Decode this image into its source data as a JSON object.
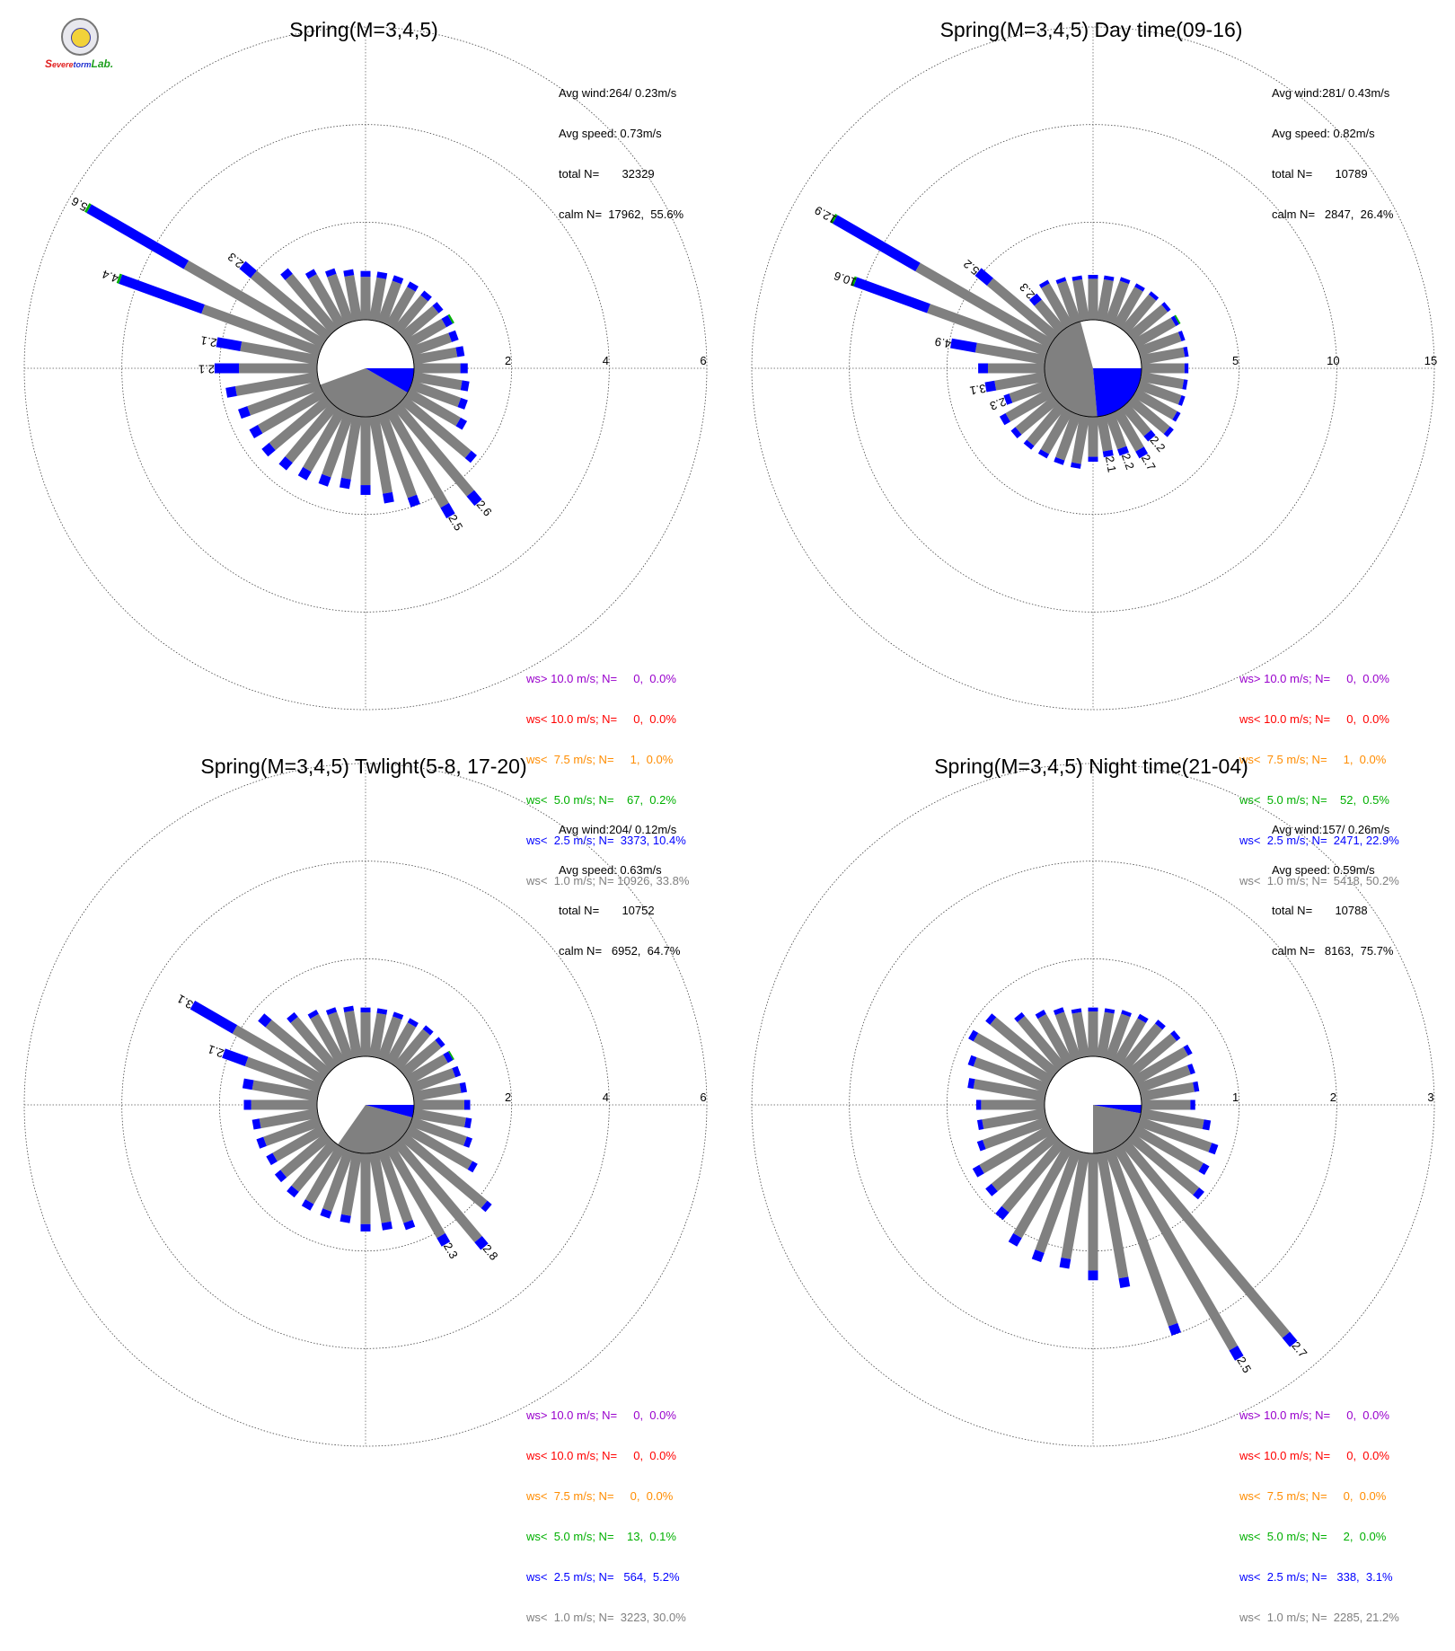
{
  "logo": {
    "text_s": "S",
    "text_evere": "evere",
    "text_torm": "torm",
    "text_lab": "Lab."
  },
  "legend_colors": [
    "#9900cc",
    "#ff0000",
    "#ff8c00",
    "#00b000",
    "#0000ff",
    "#808080"
  ],
  "chart_data": [
    {
      "type": "windrose",
      "title": "Spring(M=3,4,5)",
      "rmax": 6,
      "rings": [
        2,
        4,
        6
      ],
      "ring_labels": [
        "2",
        "4",
        "6"
      ],
      "stats": [
        "Avg wind:264/ 0.23m/s",
        "Avg speed: 0.73m/s",
        "total N=       32329",
        "calm N=  17962,  55.6%"
      ],
      "legend": [
        "ws> 10.0 m/s; N=     0,  0.0%",
        "ws< 10.0 m/s; N=     0,  0.0%",
        "ws<  7.5 m/s; N=     1,  0.0%",
        "ws<  5.0 m/s; N=    67,  0.2%",
        "ws<  2.5 m/s; N=  3373, 10.4%",
        "ws<  1.0 m/s; N= 10926, 33.8%"
      ],
      "calm_sector": {
        "gray_from": 120,
        "gray_to": 250,
        "blue_from": 90,
        "blue_to": 120
      },
      "bars": [
        {
          "dir": 0,
          "total": 1.0,
          "blue": 0.12
        },
        {
          "dir": 10,
          "total": 1.0,
          "blue": 0.12
        },
        {
          "dir": 20,
          "total": 1.0,
          "blue": 0.12
        },
        {
          "dir": 30,
          "total": 1.0,
          "blue": 0.12
        },
        {
          "dir": 40,
          "total": 1.0,
          "blue": 0.12
        },
        {
          "dir": 50,
          "total": 1.0,
          "blue": 0.12
        },
        {
          "dir": 60,
          "total": 1.05,
          "blue": 0.15,
          "green": 0.04
        },
        {
          "dir": 70,
          "total": 1.0,
          "blue": 0.15
        },
        {
          "dir": 80,
          "total": 1.05,
          "blue": 0.15
        },
        {
          "dir": 90,
          "total": 1.1,
          "blue": 0.15
        },
        {
          "dir": 100,
          "total": 1.15,
          "blue": 0.15
        },
        {
          "dir": 110,
          "total": 1.2,
          "blue": 0.15
        },
        {
          "dir": 120,
          "total": 1.35,
          "blue": 0.15
        },
        {
          "dir": 130,
          "total": 1.9,
          "blue": 0.15
        },
        {
          "dir": 140,
          "total": 2.6,
          "blue": 0.25,
          "label": "2.6"
        },
        {
          "dir": 150,
          "total": 2.5,
          "blue": 0.25,
          "label": "2.5"
        },
        {
          "dir": 160,
          "total": 2.0,
          "blue": 0.2
        },
        {
          "dir": 170,
          "total": 1.8,
          "blue": 0.2
        },
        {
          "dir": 180,
          "total": 1.6,
          "blue": 0.2
        },
        {
          "dir": 190,
          "total": 1.5,
          "blue": 0.2
        },
        {
          "dir": 200,
          "total": 1.55,
          "blue": 0.2
        },
        {
          "dir": 210,
          "total": 1.6,
          "blue": 0.2
        },
        {
          "dir": 220,
          "total": 1.65,
          "blue": 0.2
        },
        {
          "dir": 230,
          "total": 1.7,
          "blue": 0.2
        },
        {
          "dir": 240,
          "total": 1.7,
          "blue": 0.2
        },
        {
          "dir": 250,
          "total": 1.75,
          "blue": 0.2
        },
        {
          "dir": 260,
          "total": 1.9,
          "blue": 0.2
        },
        {
          "dir": 270,
          "total": 2.1,
          "blue": 0.5,
          "label": "2.1"
        },
        {
          "dir": 280,
          "total": 2.1,
          "blue": 0.5,
          "label": "2.1"
        },
        {
          "dir": 290,
          "total": 4.4,
          "blue": 1.8,
          "green": 0.05,
          "label": "4.4"
        },
        {
          "dir": 300,
          "total": 5.6,
          "blue": 2.3,
          "green": 0.05,
          "label": "5.6"
        },
        {
          "dir": 310,
          "total": 2.3,
          "blue": 0.3,
          "label": "2.3"
        },
        {
          "dir": 320,
          "total": 1.6,
          "blue": 0.15
        },
        {
          "dir": 330,
          "total": 1.3,
          "blue": 0.12
        },
        {
          "dir": 340,
          "total": 1.15,
          "blue": 0.12
        },
        {
          "dir": 350,
          "total": 1.05,
          "blue": 0.12
        }
      ]
    },
    {
      "type": "windrose",
      "title": "Spring(M=3,4,5) Day time(09-16)",
      "rmax": 15,
      "rings": [
        5,
        10,
        15
      ],
      "ring_labels": [
        "5",
        "10",
        "15"
      ],
      "stats": [
        "Avg wind:281/ 0.43m/s",
        "Avg speed: 0.82m/s",
        "total N=       10789",
        "calm N=   2847,  26.4%"
      ],
      "legend": [
        "ws> 10.0 m/s; N=     0,  0.0%",
        "ws< 10.0 m/s; N=     0,  0.0%",
        "ws<  7.5 m/s; N=     1,  0.0%",
        "ws<  5.0 m/s; N=    52,  0.5%",
        "ws<  2.5 m/s; N=  2471, 22.9%",
        "ws<  1.0 m/s; N=  5418, 50.2%"
      ],
      "calm_sector": {
        "gray_from": 175,
        "gray_to": 345,
        "blue_from": 90,
        "blue_to": 175
      },
      "bars": [
        {
          "dir": 0,
          "total": 2.3,
          "blue": 0.2
        },
        {
          "dir": 10,
          "total": 2.3,
          "blue": 0.2
        },
        {
          "dir": 20,
          "total": 2.4,
          "blue": 0.2
        },
        {
          "dir": 30,
          "total": 2.4,
          "blue": 0.2
        },
        {
          "dir": 40,
          "total": 2.45,
          "blue": 0.2
        },
        {
          "dir": 50,
          "total": 2.5,
          "blue": 0.2
        },
        {
          "dir": 60,
          "total": 2.55,
          "blue": 0.2,
          "green": 0.08
        },
        {
          "dir": 70,
          "total": 2.45,
          "blue": 0.2
        },
        {
          "dir": 80,
          "total": 2.45,
          "blue": 0.2
        },
        {
          "dir": 90,
          "total": 2.4,
          "blue": 0.2
        },
        {
          "dir": 100,
          "total": 2.4,
          "blue": 0.2
        },
        {
          "dir": 110,
          "total": 2.45,
          "blue": 0.2
        },
        {
          "dir": 120,
          "total": 2.55,
          "blue": 0.2
        },
        {
          "dir": 130,
          "total": 2.7,
          "blue": 0.25
        },
        {
          "dir": 140,
          "total": 2.2,
          "blue": 0.35,
          "label": "2.2"
        },
        {
          "dir": 150,
          "total": 2.7,
          "blue": 0.4,
          "label": "2.7"
        },
        {
          "dir": 160,
          "total": 2.2,
          "blue": 0.35,
          "label": "2.2"
        },
        {
          "dir": 170,
          "total": 2.1,
          "blue": 0.3,
          "label": "2.1"
        },
        {
          "dir": 180,
          "total": 2.3,
          "blue": 0.25
        },
        {
          "dir": 190,
          "total": 2.7,
          "blue": 0.25
        },
        {
          "dir": 200,
          "total": 2.7,
          "blue": 0.25
        },
        {
          "dir": 210,
          "total": 2.7,
          "blue": 0.25
        },
        {
          "dir": 220,
          "total": 2.75,
          "blue": 0.25
        },
        {
          "dir": 230,
          "total": 2.8,
          "blue": 0.3
        },
        {
          "dir": 240,
          "total": 2.9,
          "blue": 0.35
        },
        {
          "dir": 250,
          "total": 2.3,
          "blue": 0.3,
          "label": "2.3"
        },
        {
          "dir": 260,
          "total": 3.1,
          "blue": 0.5,
          "label": "3.1"
        },
        {
          "dir": 270,
          "total": 3.4,
          "blue": 0.5
        },
        {
          "dir": 280,
          "total": 4.9,
          "blue": 1.3,
          "label": "4.9"
        },
        {
          "dir": 290,
          "total": 10.6,
          "blue": 4.0,
          "green": 0.12,
          "label": "10.6"
        },
        {
          "dir": 300,
          "total": 12.9,
          "blue": 4.9,
          "green": 0.12,
          "label": "12.9"
        },
        {
          "dir": 310,
          "total": 5.2,
          "blue": 0.8,
          "label": "5.2"
        },
        {
          "dir": 320,
          "total": 2.3,
          "blue": 0.4,
          "label": "2.3"
        },
        {
          "dir": 330,
          "total": 2.6,
          "blue": 0.2
        },
        {
          "dir": 340,
          "total": 2.4,
          "blue": 0.2
        },
        {
          "dir": 350,
          "total": 2.3,
          "blue": 0.2
        }
      ]
    },
    {
      "type": "windrose",
      "title": "Spring(M=3,4,5) Twlight(5-8, 17-20)",
      "rmax": 6,
      "rings": [
        2,
        4,
        6
      ],
      "ring_labels": [
        "2",
        "4",
        "6"
      ],
      "stats": [
        "Avg wind:204/ 0.12m/s",
        "Avg speed: 0.63m/s",
        "total N=       10752",
        "calm N=   6952,  64.7%"
      ],
      "legend": [
        "ws> 10.0 m/s; N=     0,  0.0%",
        "ws< 10.0 m/s; N=     0,  0.0%",
        "ws<  7.5 m/s; N=     0,  0.0%",
        "ws<  5.0 m/s; N=    13,  0.1%",
        "ws<  2.5 m/s; N=   564,  5.2%",
        "ws<  1.0 m/s; N=  3223, 30.0%"
      ],
      "calm_sector": {
        "gray_from": 105,
        "gray_to": 215,
        "blue_from": 90,
        "blue_to": 105
      },
      "bars": [
        {
          "dir": 0,
          "total": 1.0,
          "blue": 0.1
        },
        {
          "dir": 10,
          "total": 1.0,
          "blue": 0.1
        },
        {
          "dir": 20,
          "total": 1.0,
          "blue": 0.1
        },
        {
          "dir": 30,
          "total": 1.0,
          "blue": 0.1
        },
        {
          "dir": 40,
          "total": 1.05,
          "blue": 0.1
        },
        {
          "dir": 50,
          "total": 1.05,
          "blue": 0.1
        },
        {
          "dir": 60,
          "total": 1.05,
          "blue": 0.12,
          "green": 0.03
        },
        {
          "dir": 70,
          "total": 1.05,
          "blue": 0.12
        },
        {
          "dir": 80,
          "total": 1.1,
          "blue": 0.12
        },
        {
          "dir": 90,
          "total": 1.15,
          "blue": 0.12
        },
        {
          "dir": 100,
          "total": 1.2,
          "blue": 0.12
        },
        {
          "dir": 110,
          "total": 1.3,
          "blue": 0.12
        },
        {
          "dir": 120,
          "total": 1.6,
          "blue": 0.12
        },
        {
          "dir": 130,
          "total": 2.3,
          "blue": 0.12
        },
        {
          "dir": 140,
          "total": 2.8,
          "blue": 0.2,
          "label": "2.8"
        },
        {
          "dir": 150,
          "total": 2.3,
          "blue": 0.2,
          "label": "2.3"
        },
        {
          "dir": 160,
          "total": 1.7,
          "blue": 0.15
        },
        {
          "dir": 170,
          "total": 1.6,
          "blue": 0.15
        },
        {
          "dir": 180,
          "total": 1.6,
          "blue": 0.15
        },
        {
          "dir": 190,
          "total": 1.45,
          "blue": 0.15
        },
        {
          "dir": 200,
          "total": 1.45,
          "blue": 0.15
        },
        {
          "dir": 210,
          "total": 1.45,
          "blue": 0.15
        },
        {
          "dir": 220,
          "total": 1.4,
          "blue": 0.15
        },
        {
          "dir": 230,
          "total": 1.35,
          "blue": 0.15
        },
        {
          "dir": 240,
          "total": 1.3,
          "blue": 0.15
        },
        {
          "dir": 250,
          "total": 1.35,
          "blue": 0.15
        },
        {
          "dir": 260,
          "total": 1.35,
          "blue": 0.15
        },
        {
          "dir": 270,
          "total": 1.5,
          "blue": 0.15
        },
        {
          "dir": 280,
          "total": 1.55,
          "blue": 0.2
        },
        {
          "dir": 290,
          "total": 2.1,
          "blue": 0.5,
          "label": "2.1"
        },
        {
          "dir": 300,
          "total": 3.1,
          "blue": 1.0,
          "label": "3.1"
        },
        {
          "dir": 310,
          "total": 1.8,
          "blue": 0.2
        },
        {
          "dir": 320,
          "total": 1.4,
          "blue": 0.12
        },
        {
          "dir": 330,
          "total": 1.2,
          "blue": 0.1
        },
        {
          "dir": 340,
          "total": 1.1,
          "blue": 0.1
        },
        {
          "dir": 350,
          "total": 1.05,
          "blue": 0.1
        }
      ]
    },
    {
      "type": "windrose",
      "title": "Spring(M=3,4,5) Night time(21-04)",
      "rmax": 3,
      "rings": [
        1,
        2,
        3
      ],
      "ring_labels": [
        "1",
        "2",
        "3"
      ],
      "stats": [
        "Avg wind:157/ 0.26m/s",
        "Avg speed: 0.59m/s",
        "total N=       10788",
        "calm N=   8163,  75.7%"
      ],
      "legend": [
        "ws> 10.0 m/s; N=     0,  0.0%",
        "ws< 10.0 m/s; N=     0,  0.0%",
        "ws<  7.5 m/s; N=     0,  0.0%",
        "ws<  5.0 m/s; N=     2,  0.0%",
        "ws<  2.5 m/s; N=   338,  3.1%",
        "ws<  1.0 m/s; N=  2285, 21.2%"
      ],
      "calm_sector": {
        "gray_from": 100,
        "gray_to": 180,
        "blue_from": 90,
        "blue_to": 100
      },
      "bars": [
        {
          "dir": 0,
          "total": 0.5,
          "blue": 0.04
        },
        {
          "dir": 10,
          "total": 0.5,
          "blue": 0.04
        },
        {
          "dir": 20,
          "total": 0.52,
          "blue": 0.04
        },
        {
          "dir": 30,
          "total": 0.55,
          "blue": 0.05
        },
        {
          "dir": 40,
          "total": 0.6,
          "blue": 0.05
        },
        {
          "dir": 50,
          "total": 0.63,
          "blue": 0.05
        },
        {
          "dir": 60,
          "total": 0.65,
          "blue": 0.05
        },
        {
          "dir": 70,
          "total": 0.6,
          "blue": 0.05
        },
        {
          "dir": 80,
          "total": 0.6,
          "blue": 0.05
        },
        {
          "dir": 90,
          "total": 0.55,
          "blue": 0.05
        },
        {
          "dir": 100,
          "total": 0.72,
          "blue": 0.07
        },
        {
          "dir": 110,
          "total": 0.85,
          "blue": 0.07
        },
        {
          "dir": 120,
          "total": 0.85,
          "blue": 0.07
        },
        {
          "dir": 130,
          "total": 0.95,
          "blue": 0.07
        },
        {
          "dir": 140,
          "total": 2.7,
          "blue": 0.12,
          "label": "2.7"
        },
        {
          "dir": 150,
          "total": 2.5,
          "blue": 0.12,
          "label": "2.5"
        },
        {
          "dir": 160,
          "total": 2.0,
          "blue": 0.1
        },
        {
          "dir": 170,
          "total": 1.4,
          "blue": 0.1
        },
        {
          "dir": 180,
          "total": 1.3,
          "blue": 0.1
        },
        {
          "dir": 190,
          "total": 1.2,
          "blue": 0.1
        },
        {
          "dir": 200,
          "total": 1.2,
          "blue": 0.1
        },
        {
          "dir": 210,
          "total": 1.15,
          "blue": 0.1
        },
        {
          "dir": 220,
          "total": 1.0,
          "blue": 0.1
        },
        {
          "dir": 230,
          "total": 0.9,
          "blue": 0.08
        },
        {
          "dir": 240,
          "total": 0.9,
          "blue": 0.08
        },
        {
          "dir": 250,
          "total": 0.75,
          "blue": 0.06
        },
        {
          "dir": 260,
          "total": 0.7,
          "blue": 0.05
        },
        {
          "dir": 270,
          "total": 0.7,
          "blue": 0.05
        },
        {
          "dir": 280,
          "total": 0.8,
          "blue": 0.06
        },
        {
          "dir": 290,
          "total": 0.85,
          "blue": 0.06
        },
        {
          "dir": 300,
          "total": 0.95,
          "blue": 0.06
        },
        {
          "dir": 310,
          "total": 0.9,
          "blue": 0.06
        },
        {
          "dir": 320,
          "total": 0.7,
          "blue": 0.05
        },
        {
          "dir": 330,
          "total": 0.6,
          "blue": 0.05
        },
        {
          "dir": 340,
          "total": 0.55,
          "blue": 0.05
        },
        {
          "dir": 350,
          "total": 0.5,
          "blue": 0.04
        }
      ]
    }
  ]
}
